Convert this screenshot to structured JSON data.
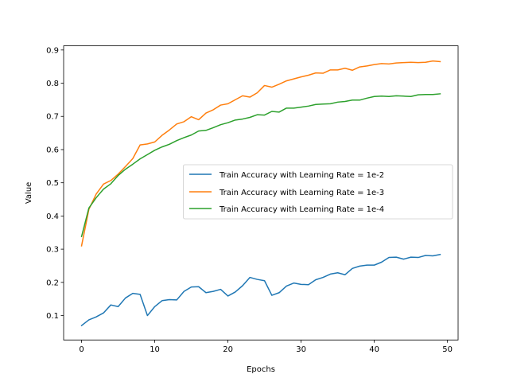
{
  "chart_data": {
    "type": "line",
    "title": "",
    "xlabel": "Epochs",
    "ylabel": "Value",
    "xlim": [
      -2.45,
      51.45
    ],
    "ylim": [
      0.0265,
      0.9125
    ],
    "xticks": [
      0,
      10,
      20,
      30,
      40,
      50
    ],
    "yticks": [
      0.1,
      0.2,
      0.3,
      0.4,
      0.5,
      0.6,
      0.7,
      0.8,
      0.9
    ],
    "grid": false,
    "legend_position": "center-right",
    "x": [
      0,
      1,
      2,
      3,
      4,
      5,
      6,
      7,
      8,
      9,
      10,
      11,
      12,
      13,
      14,
      15,
      16,
      17,
      18,
      19,
      20,
      21,
      22,
      23,
      24,
      25,
      26,
      27,
      28,
      29,
      30,
      31,
      32,
      33,
      34,
      35,
      36,
      37,
      38,
      39,
      40,
      41,
      42,
      43,
      44,
      45,
      46,
      47,
      48,
      49
    ],
    "series": [
      {
        "name": "Train Accuracy with Learning Rate = 1e-2",
        "color": "#1f77b4",
        "values": [
          0.07,
          0.087,
          0.096,
          0.108,
          0.132,
          0.127,
          0.153,
          0.167,
          0.164,
          0.1,
          0.127,
          0.145,
          0.148,
          0.147,
          0.173,
          0.186,
          0.187,
          0.169,
          0.173,
          0.179,
          0.159,
          0.171,
          0.19,
          0.215,
          0.209,
          0.205,
          0.161,
          0.169,
          0.189,
          0.198,
          0.194,
          0.193,
          0.208,
          0.215,
          0.225,
          0.229,
          0.223,
          0.242,
          0.249,
          0.252,
          0.252,
          0.261,
          0.275,
          0.276,
          0.27,
          0.276,
          0.275,
          0.281,
          0.28,
          0.284
        ]
      },
      {
        "name": "Train Accuracy with Learning Rate = 1e-3",
        "color": "#ff7f0e",
        "values": [
          0.31,
          0.42,
          0.466,
          0.496,
          0.507,
          0.526,
          0.549,
          0.573,
          0.614,
          0.617,
          0.623,
          0.643,
          0.659,
          0.677,
          0.684,
          0.699,
          0.69,
          0.71,
          0.72,
          0.734,
          0.738,
          0.75,
          0.762,
          0.758,
          0.771,
          0.793,
          0.788,
          0.797,
          0.807,
          0.813,
          0.819,
          0.824,
          0.831,
          0.83,
          0.84,
          0.84,
          0.845,
          0.839,
          0.849,
          0.852,
          0.856,
          0.859,
          0.858,
          0.861,
          0.862,
          0.863,
          0.862,
          0.863,
          0.867,
          0.865
        ]
      },
      {
        "name": "Train Accuracy with Learning Rate = 1e-4",
        "color": "#2ca02c",
        "values": [
          0.338,
          0.424,
          0.455,
          0.481,
          0.497,
          0.522,
          0.541,
          0.556,
          0.572,
          0.585,
          0.598,
          0.608,
          0.616,
          0.627,
          0.636,
          0.644,
          0.656,
          0.658,
          0.666,
          0.675,
          0.681,
          0.689,
          0.692,
          0.697,
          0.705,
          0.704,
          0.715,
          0.713,
          0.725,
          0.725,
          0.728,
          0.731,
          0.736,
          0.737,
          0.738,
          0.743,
          0.745,
          0.749,
          0.749,
          0.755,
          0.76,
          0.761,
          0.76,
          0.762,
          0.761,
          0.76,
          0.765,
          0.766,
          0.766,
          0.768
        ]
      }
    ]
  }
}
